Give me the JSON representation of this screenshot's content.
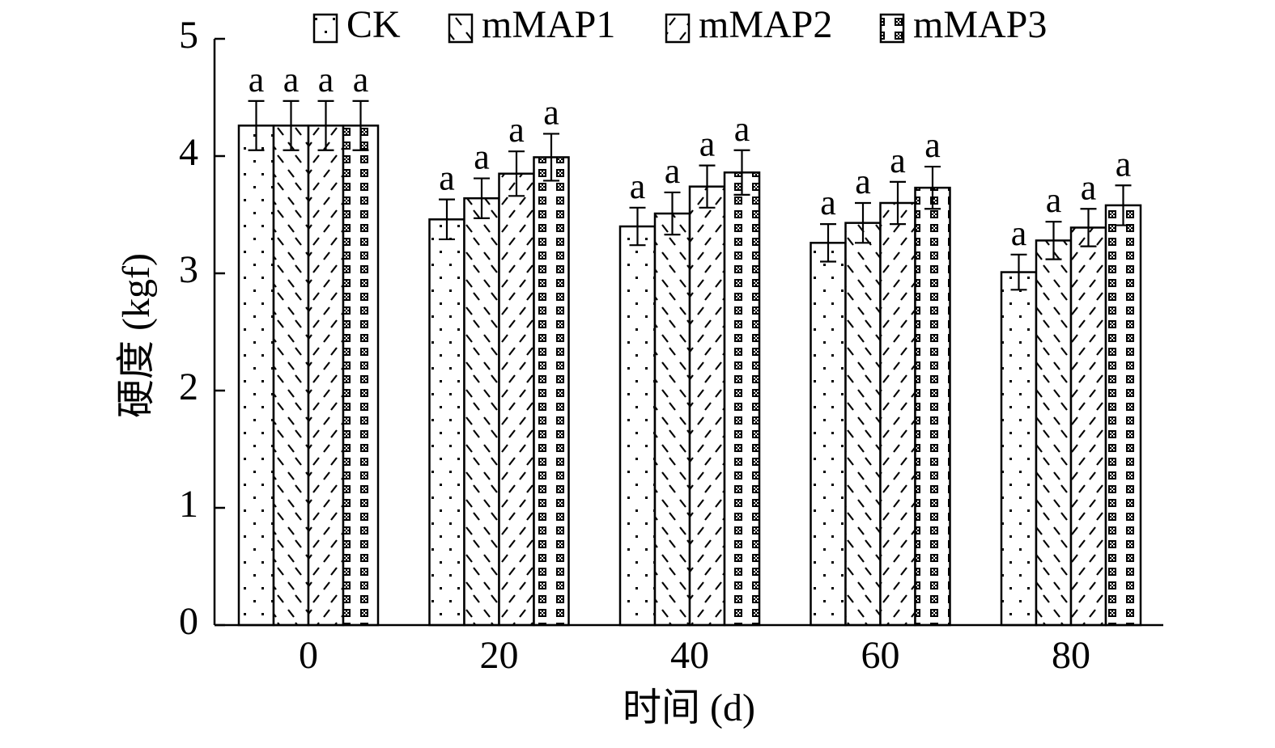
{
  "chart_data": {
    "type": "bar",
    "title": "",
    "xlabel": "时间 (d)",
    "ylabel": "硬度 (kgf)",
    "ylim": [
      0,
      5
    ],
    "yticks": [
      0,
      1,
      2,
      3,
      4,
      5
    ],
    "categories": [
      "0",
      "20",
      "40",
      "60",
      "80"
    ],
    "legend_position": "top",
    "grid": false,
    "series": [
      {
        "name": "CK",
        "pattern": "dots",
        "values": [
          4.26,
          3.46,
          3.4,
          3.26,
          3.01
        ],
        "errors": [
          0.21,
          0.17,
          0.16,
          0.16,
          0.15
        ],
        "sig": [
          "a",
          "a",
          "a",
          "a",
          "a"
        ]
      },
      {
        "name": "mMAP1",
        "pattern": "backslash",
        "values": [
          4.26,
          3.64,
          3.51,
          3.43,
          3.28
        ],
        "errors": [
          0.21,
          0.17,
          0.18,
          0.17,
          0.16
        ],
        "sig": [
          "a",
          "a",
          "a",
          "a",
          "a"
        ]
      },
      {
        "name": "mMAP2",
        "pattern": "slash",
        "values": [
          4.26,
          3.85,
          3.74,
          3.6,
          3.39
        ],
        "errors": [
          0.21,
          0.19,
          0.18,
          0.18,
          0.16
        ],
        "sig": [
          "a",
          "a",
          "a",
          "a",
          "a"
        ]
      },
      {
        "name": "mMAP3",
        "pattern": "checker",
        "values": [
          4.26,
          3.99,
          3.86,
          3.73,
          3.58
        ],
        "errors": [
          0.21,
          0.2,
          0.19,
          0.18,
          0.17
        ],
        "sig": [
          "a",
          "a",
          "a",
          "a",
          "a"
        ]
      }
    ]
  }
}
